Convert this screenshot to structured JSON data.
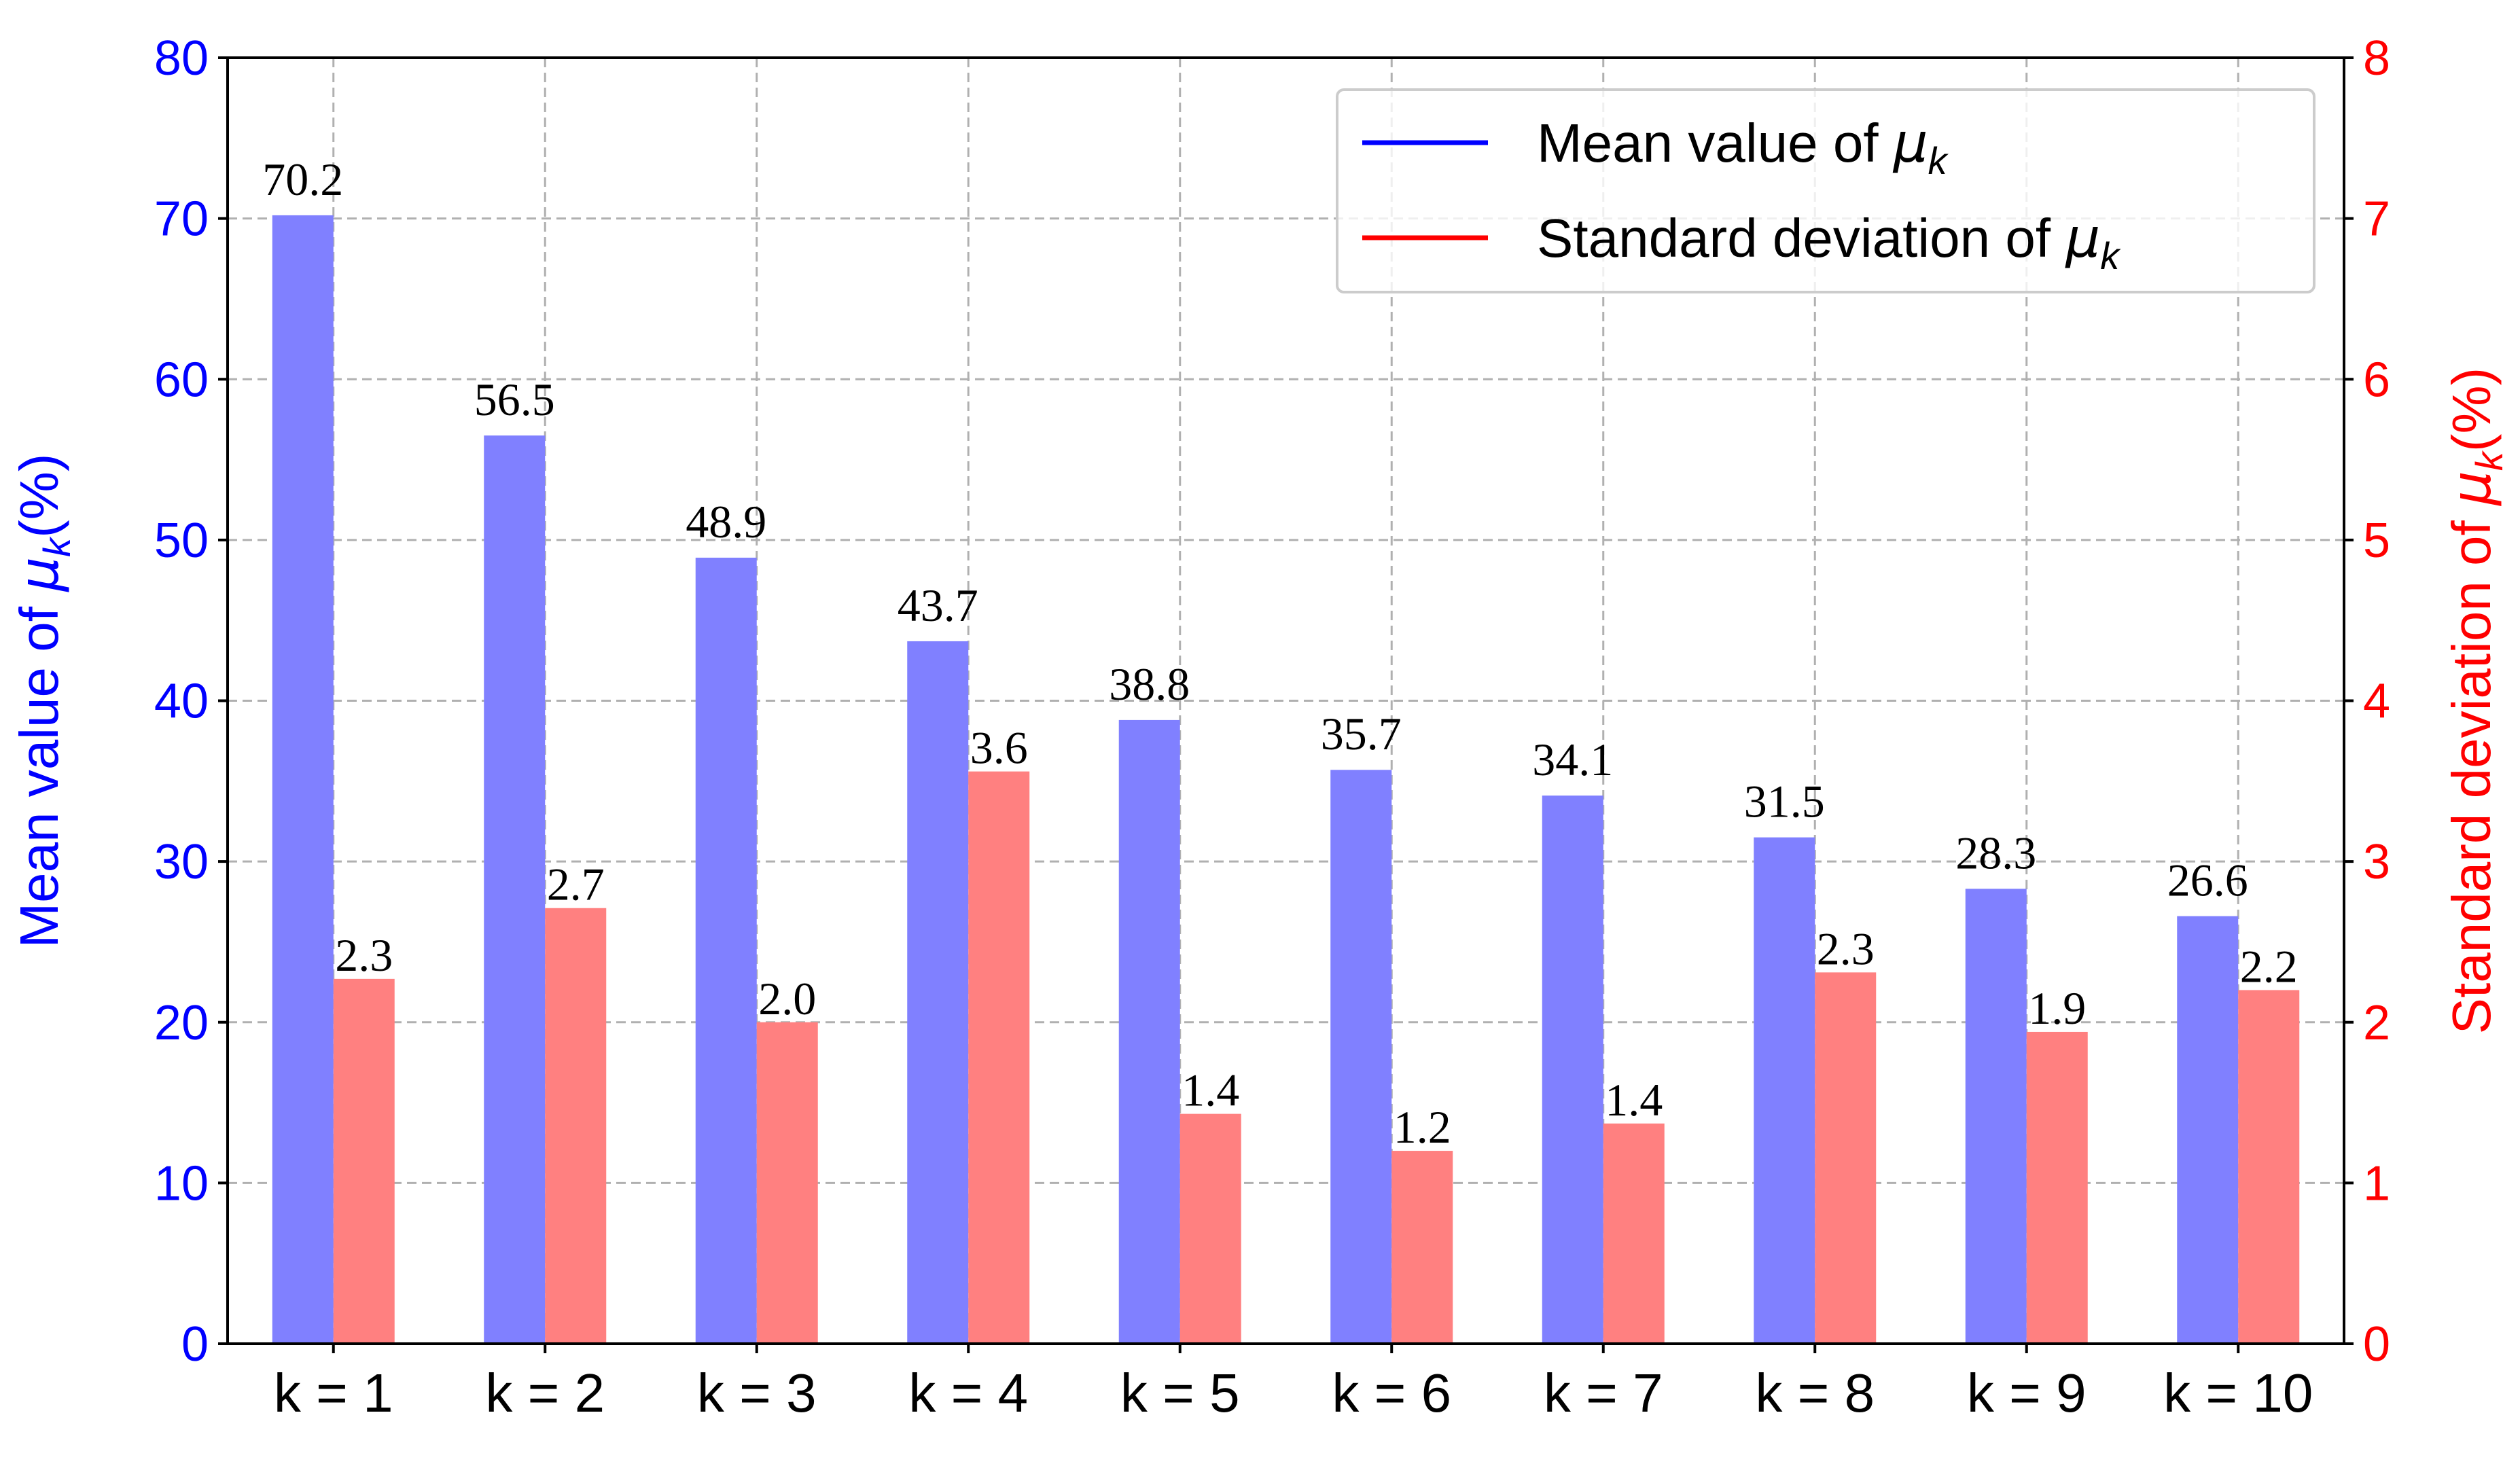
{
  "chart_data": {
    "type": "bar",
    "categories": [
      "k = 1",
      "k = 2",
      "k = 3",
      "k = 4",
      "k = 5",
      "k = 6",
      "k = 7",
      "k = 8",
      "k = 9",
      "k = 10"
    ],
    "series": [
      {
        "name": "Mean value of μk",
        "axis": "left",
        "color": "#8080ff",
        "values": [
          70.2,
          56.5,
          48.9,
          43.7,
          38.8,
          35.7,
          34.1,
          31.5,
          28.3,
          26.6
        ],
        "labels": [
          "70.2",
          "56.5",
          "48.9",
          "43.7",
          "38.8",
          "35.7",
          "34.1",
          "31.5",
          "28.3",
          "26.6"
        ]
      },
      {
        "name": "Standard deviation of μk",
        "axis": "right",
        "color": "#ff8080",
        "values": [
          2.27,
          2.71,
          2.0,
          3.56,
          1.43,
          1.2,
          1.37,
          2.31,
          1.94,
          2.2
        ],
        "labels": [
          "2.3",
          "2.7",
          "2.0",
          "3.6",
          "1.4",
          "1.2",
          "1.4",
          "2.3",
          "1.9",
          "2.2"
        ]
      }
    ],
    "ylabel_left": {
      "prefix": "Mean value of ",
      "symbol": "μ",
      "sub": "k",
      "suffix": "(%)"
    },
    "ylabel_right": {
      "prefix": "Standard deviation of ",
      "symbol": "μ",
      "sub": "k",
      "suffix": "(%)"
    },
    "ylim_left": [
      0,
      80
    ],
    "ylim_right": [
      0,
      8
    ],
    "yticks_left": [
      "0",
      "10",
      "20",
      "30",
      "40",
      "50",
      "60",
      "70",
      "80"
    ],
    "yticks_right": [
      "0",
      "1",
      "2",
      "3",
      "4",
      "5",
      "6",
      "7",
      "8"
    ],
    "left_axis_color": "#0000ff",
    "right_axis_color": "#ff0000",
    "grid": true,
    "legend": {
      "position": "top-right",
      "entries": [
        {
          "prefix": "Mean value of ",
          "symbol": "μ",
          "sub": "k",
          "color": "#0000ff"
        },
        {
          "prefix": "Standard deviation of ",
          "symbol": "μ",
          "sub": "k",
          "color": "#ff0000"
        }
      ]
    }
  }
}
